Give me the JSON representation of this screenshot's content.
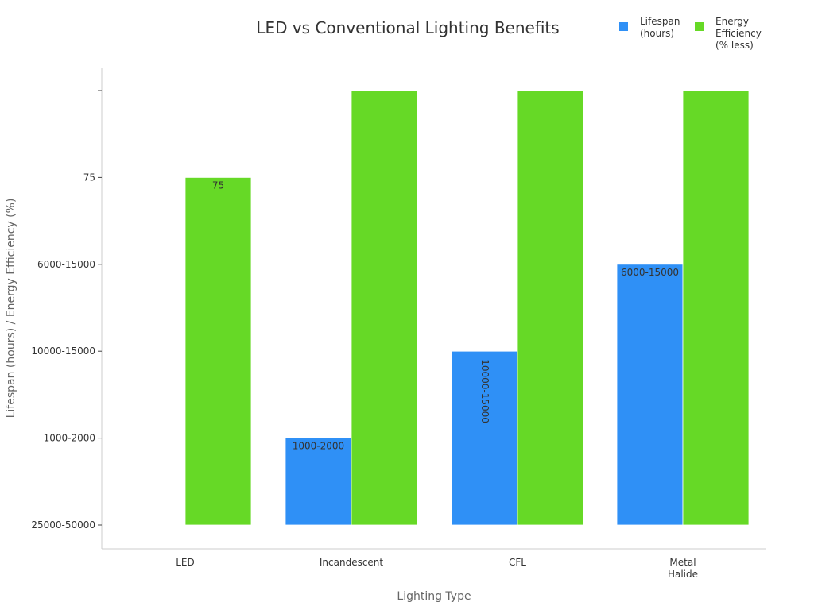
{
  "chart_data": {
    "type": "bar",
    "title": "LED vs Conventional Lighting Benefits",
    "xlabel": "Lighting Type",
    "ylabel": "Lifespan (hours) / Energy Efficiency (%)",
    "categories": [
      "LED",
      "Incandescent",
      "CFL",
      "Metal\nHalide"
    ],
    "y_categories": [
      "25000-50000",
      "1000-2000",
      "10000-15000",
      "6000-15000",
      "75",
      ""
    ],
    "series": [
      {
        "name": "Lifespan\n(hours)",
        "color": "#2f90f6",
        "values": [
          "25000-50000",
          "1000-2000",
          "10000-15000",
          "6000-15000"
        ],
        "labels": [
          "",
          "1000-2000",
          "10000-15000",
          "6000-15000"
        ]
      },
      {
        "name": "Energy\nEfficiency\n(% less)",
        "color": "#66d926",
        "values": [
          "75",
          "",
          "",
          ""
        ],
        "labels": [
          "75",
          "",
          "",
          ""
        ]
      }
    ],
    "legend_position": "top-right",
    "grid": false
  }
}
